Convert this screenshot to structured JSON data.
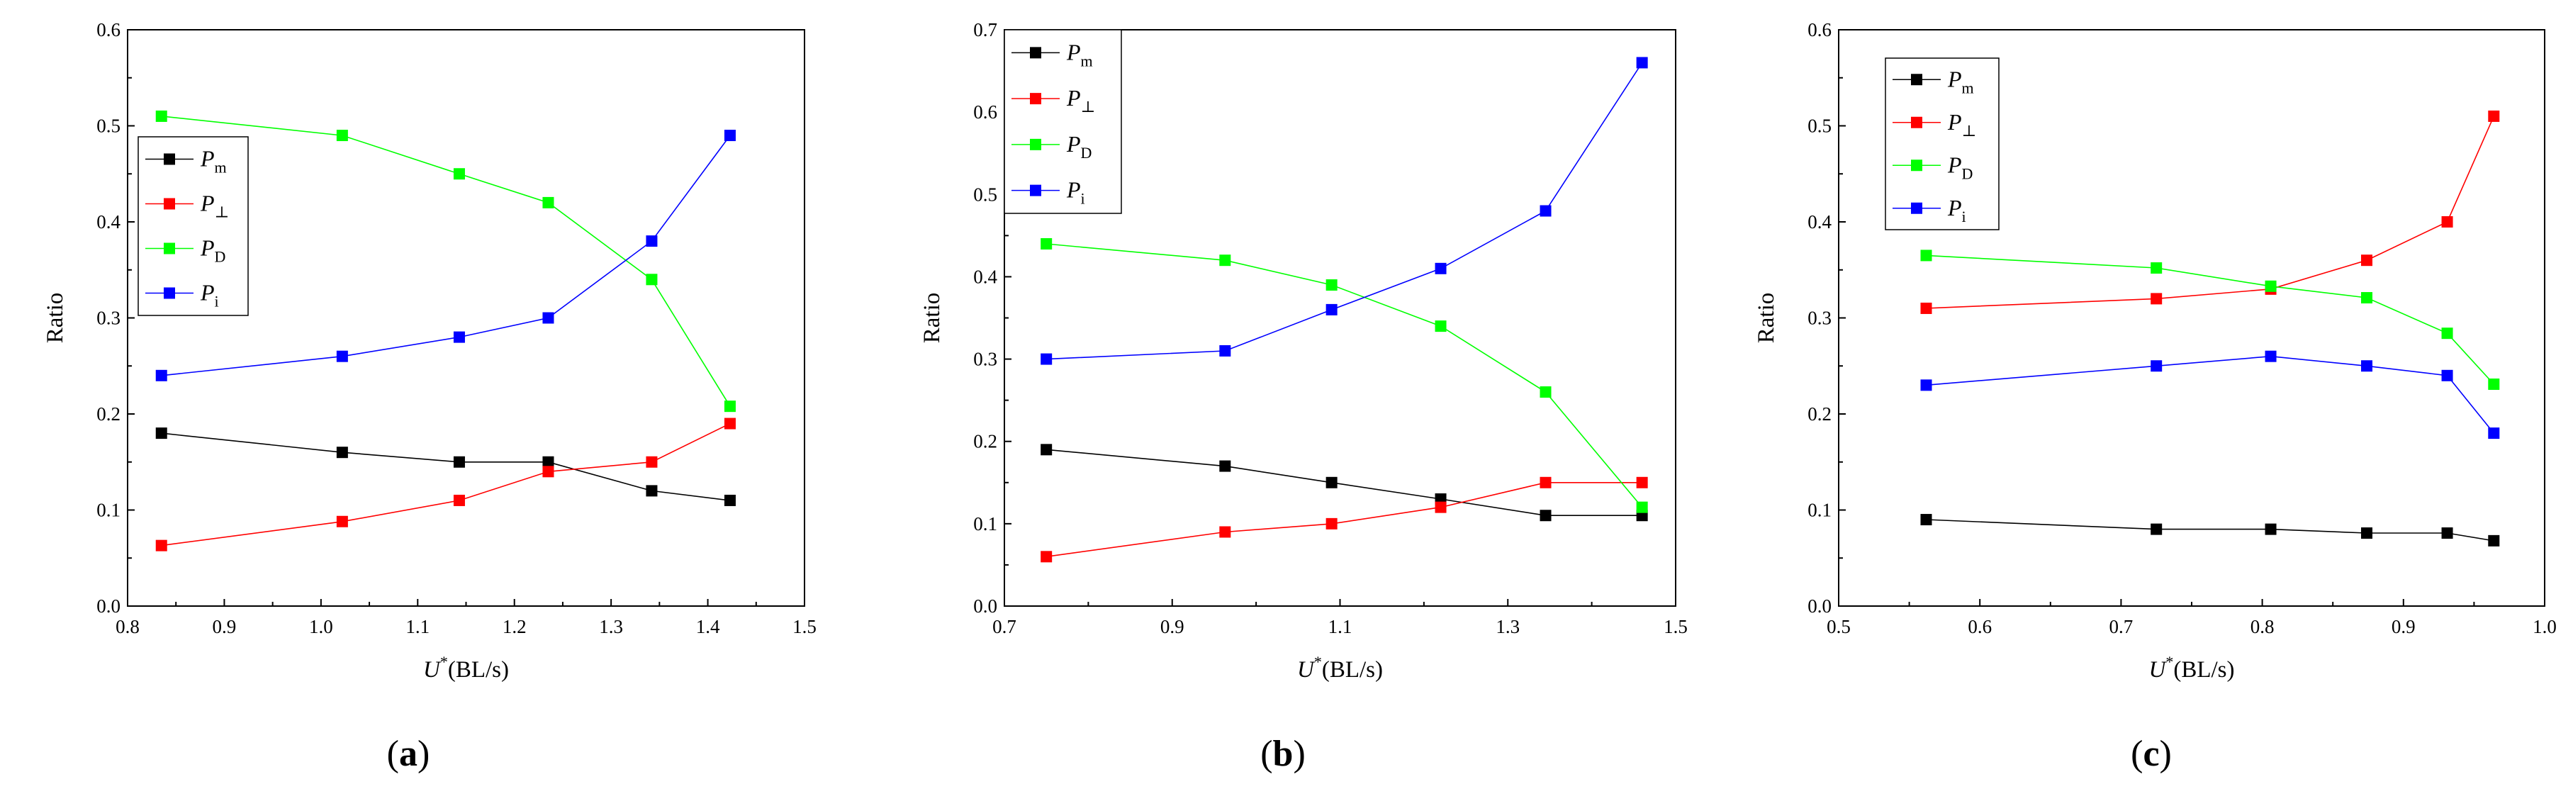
{
  "figure": {
    "panel_labels": [
      "(a)",
      "(b)",
      "(c)"
    ],
    "panel_letters": [
      "a",
      "b",
      "c"
    ]
  },
  "chart_data": [
    {
      "type": "line",
      "panel": "a",
      "ylabel": "Ratio",
      "xlabel_main": "U",
      "xlabel_sup": "*",
      "xlabel_units": "(BL/s)",
      "xlim": [
        0.8,
        1.5
      ],
      "ylim": [
        0.0,
        0.6
      ],
      "xticks": [
        "0.8",
        "0.9",
        "1.0",
        "1.1",
        "1.2",
        "1.3",
        "1.4",
        "1.5"
      ],
      "yticks": [
        "0.0",
        "0.1",
        "0.2",
        "0.3",
        "0.4",
        "0.5",
        "0.6"
      ],
      "x": [
        0.835,
        1.022,
        1.143,
        1.235,
        1.342,
        1.423
      ],
      "legend_position": "upper-left",
      "series": [
        {
          "name": "P",
          "sub": "m",
          "color": "#000000",
          "values": [
            0.18,
            0.16,
            0.15,
            0.15,
            0.12,
            0.11
          ]
        },
        {
          "name": "P",
          "sub": "⊥",
          "color": "#ff0000",
          "values": [
            0.063,
            0.088,
            0.11,
            0.14,
            0.15,
            0.19
          ]
        },
        {
          "name": "P",
          "sub": "D",
          "color": "#00ff00",
          "values": [
            0.51,
            0.49,
            0.45,
            0.42,
            0.34,
            0.208
          ]
        },
        {
          "name": "P",
          "sub": "i",
          "color": "#0000ff",
          "values": [
            0.24,
            0.26,
            0.28,
            0.3,
            0.38,
            0.49
          ]
        }
      ]
    },
    {
      "type": "line",
      "panel": "b",
      "ylabel": "Ratio",
      "xlabel_main": "U",
      "xlabel_sup": "*",
      "xlabel_units": "(BL/s)",
      "xlim": [
        0.7,
        1.5
      ],
      "ylim": [
        0.0,
        0.7
      ],
      "xticks": [
        "0.7",
        "0.9",
        "1.1",
        "1.3",
        "1.5"
      ],
      "yticks": [
        "0.0",
        "0.1",
        "0.2",
        "0.3",
        "0.4",
        "0.5",
        "0.6",
        "0.7"
      ],
      "x": [
        0.75,
        0.963,
        1.09,
        1.22,
        1.345,
        1.46
      ],
      "legend_position": "top-left",
      "series": [
        {
          "name": "P",
          "sub": "m",
          "color": "#000000",
          "values": [
            0.19,
            0.17,
            0.15,
            0.13,
            0.11,
            0.11
          ]
        },
        {
          "name": "P",
          "sub": "⊥",
          "color": "#ff0000",
          "values": [
            0.06,
            0.09,
            0.1,
            0.12,
            0.15,
            0.15
          ]
        },
        {
          "name": "P",
          "sub": "D",
          "color": "#00ff00",
          "values": [
            0.44,
            0.42,
            0.39,
            0.34,
            0.26,
            0.12
          ]
        },
        {
          "name": "P",
          "sub": "i",
          "color": "#0000ff",
          "values": [
            0.3,
            0.31,
            0.36,
            0.41,
            0.48,
            0.66
          ]
        }
      ]
    },
    {
      "type": "line",
      "panel": "c",
      "ylabel": "Ratio",
      "xlabel_main": "U",
      "xlabel_sup": "*",
      "xlabel_units": "(BL/s)",
      "xlim": [
        0.5,
        1.0
      ],
      "ylim": [
        0.0,
        0.6
      ],
      "xticks": [
        "0.5",
        "0.6",
        "0.7",
        "0.8",
        "0.9",
        "1.0"
      ],
      "yticks": [
        "0.0",
        "0.1",
        "0.2",
        "0.3",
        "0.4",
        "0.5",
        "0.6"
      ],
      "x": [
        0.562,
        0.725,
        0.806,
        0.874,
        0.931,
        0.964
      ],
      "legend_position": "top-left",
      "series": [
        {
          "name": "P",
          "sub": "m",
          "color": "#000000",
          "values": [
            0.09,
            0.08,
            0.08,
            0.076,
            0.076,
            0.068
          ]
        },
        {
          "name": "P",
          "sub": "⊥",
          "color": "#ff0000",
          "values": [
            0.31,
            0.32,
            0.33,
            0.36,
            0.4,
            0.51
          ]
        },
        {
          "name": "P",
          "sub": "D",
          "color": "#00ff00",
          "values": [
            0.365,
            0.352,
            0.333,
            0.321,
            0.284,
            0.231
          ]
        },
        {
          "name": "P",
          "sub": "i",
          "color": "#0000ff",
          "values": [
            0.23,
            0.25,
            0.26,
            0.25,
            0.24,
            0.18
          ]
        }
      ]
    }
  ]
}
